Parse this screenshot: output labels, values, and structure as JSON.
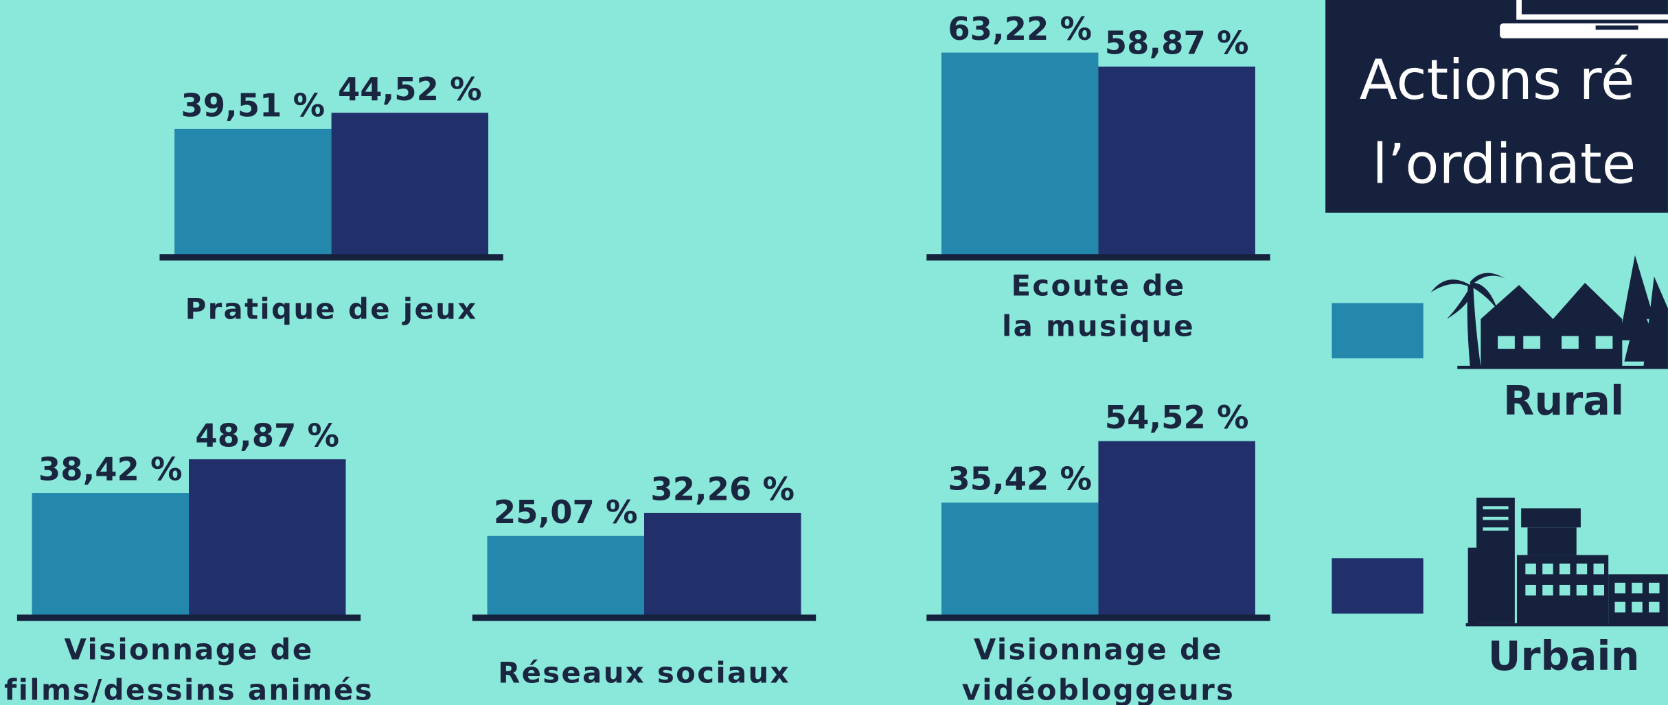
{
  "title": {
    "lines": [
      "Actions ré",
      "l’ordinate"
    ]
  },
  "legend": [
    {
      "name": "Rural",
      "color": "#2487ac"
    },
    {
      "name": "Urbain",
      "color": "#21306b"
    }
  ],
  "chart_data": [
    {
      "type": "bar",
      "categories": [
        "Pratique de jeux"
      ],
      "series": [
        {
          "values": [
            39.51
          ],
          "value_labels": [
            "39,51 %"
          ]
        },
        {
          "values": [
            44.52
          ],
          "value_labels": [
            "44,52 %"
          ]
        }
      ]
    },
    {
      "type": "bar",
      "categories": [
        "Ecoute de\nla musique"
      ],
      "series": [
        {
          "values": [
            63.22
          ],
          "value_labels": [
            "63,22 %"
          ]
        },
        {
          "values": [
            58.87
          ],
          "value_labels": [
            "58,87 %"
          ]
        }
      ]
    },
    {
      "type": "bar",
      "categories": [
        "Visionnage de\nfilms/dessins animés"
      ],
      "series": [
        {
          "values": [
            38.42
          ],
          "value_labels": [
            "38,42 %"
          ]
        },
        {
          "values": [
            48.87
          ],
          "value_labels": [
            "48,87 %"
          ]
        }
      ]
    },
    {
      "type": "bar",
      "categories": [
        "Réseaux sociaux"
      ],
      "series": [
        {
          "values": [
            25.07
          ],
          "value_labels": [
            "25,07 %"
          ]
        },
        {
          "values": [
            32.26
          ],
          "value_labels": [
            "32,26 %"
          ]
        }
      ]
    },
    {
      "type": "bar",
      "categories": [
        "Visionnage de\nvidéobloggeurs"
      ],
      "series": [
        {
          "values": [
            35.42
          ],
          "value_labels": [
            "35,42 %"
          ]
        },
        {
          "values": [
            54.52
          ],
          "value_labels": [
            "54,52 %"
          ]
        }
      ]
    }
  ]
}
